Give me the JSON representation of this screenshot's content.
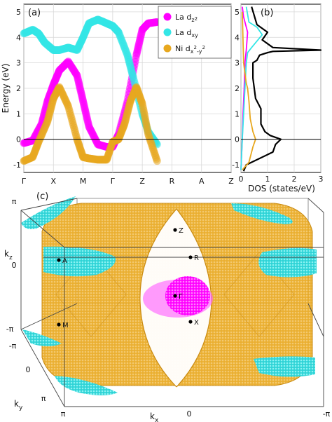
{
  "colors": {
    "la_dz2": "#ff00ff",
    "la_dxy": "#33e6e6",
    "ni_dx2y2": "#e8a81f",
    "total": "#000000"
  },
  "chart_data": [
    {
      "type": "line",
      "panel_label": "(a)",
      "ylabel": "Energy (eV)",
      "ylim": [
        -1.3,
        5.3
      ],
      "yticks": [
        "-1",
        "0",
        "1",
        "2",
        "3",
        "4",
        "5"
      ],
      "k_labels": [
        "Γ",
        "X",
        "M",
        "Γ",
        "Z",
        "R",
        "A",
        "Z"
      ],
      "grid": true,
      "legend": {
        "placement": "top-right",
        "entries": [
          "La dz2",
          "La dxy",
          "Ni dx2-y2"
        ],
        "display": [
          {
            "main": "La d",
            "sub": "z",
            "sup": "2"
          },
          {
            "main": "La d",
            "sub": "xy",
            "sup": ""
          },
          {
            "main": "Ni d",
            "sub": "x",
            "sup": "2",
            "sub2": "-y",
            "sup2": "2"
          }
        ]
      },
      "series": [
        {
          "name": "La dz2",
          "x": [
            0.0,
            0.3,
            0.6,
            0.8,
            1.0,
            1.2,
            1.5,
            1.8,
            2.0,
            2.2,
            2.5,
            2.8,
            3.0,
            3.2,
            3.5,
            3.8,
            4.0,
            4.2,
            4.5
          ],
          "y": [
            -0.15,
            -0.05,
            0.6,
            1.5,
            2.15,
            2.7,
            3.05,
            2.5,
            1.5,
            0.5,
            -0.2,
            -0.3,
            -0.3,
            0.2,
            1.5,
            3.3,
            4.3,
            4.55,
            4.6
          ]
        },
        {
          "name": "La dxy",
          "x": [
            0.0,
            0.3,
            0.5,
            0.7,
            1.0,
            1.2,
            1.5,
            1.8,
            2.0,
            2.2,
            2.5,
            2.8,
            3.0,
            3.2,
            3.5,
            3.7,
            4.0,
            4.2,
            4.5
          ],
          "y": [
            4.15,
            4.3,
            4.15,
            3.8,
            3.5,
            3.5,
            3.6,
            3.5,
            4.0,
            4.55,
            4.7,
            4.55,
            4.45,
            4.2,
            3.3,
            2.4,
            1.0,
            0.3,
            -0.2
          ]
        },
        {
          "name": "Ni dx2-y2",
          "x": [
            0.0,
            0.3,
            0.5,
            0.8,
            1.0,
            1.2,
            1.5,
            1.8,
            2.0,
            2.2,
            2.5,
            2.8,
            3.0,
            3.2,
            3.4,
            3.6,
            3.8,
            4.0,
            4.2,
            4.5
          ],
          "y": [
            -0.85,
            -0.7,
            -0.1,
            0.7,
            1.6,
            2.05,
            1.3,
            0.0,
            -0.7,
            -0.75,
            -0.8,
            -0.8,
            -0.1,
            0.0,
            0.6,
            1.5,
            2.05,
            1.4,
            0.2,
            -0.85
          ]
        }
      ]
    },
    {
      "type": "line",
      "panel_label": "(b)",
      "xlabel": "DOS (states/eV)",
      "xlim": [
        0,
        3
      ],
      "xticks": [
        "0",
        "1",
        "2",
        "3"
      ],
      "ylim": [
        -1.3,
        5.3
      ],
      "grid": true,
      "series": [
        {
          "name": "Total",
          "x": [
            0.1,
            0.2,
            1.2,
            1.3,
            1.5,
            1.1,
            0.9,
            0.75,
            0.75,
            0.55,
            0.5,
            0.45,
            0.45,
            0.6,
            0.7,
            1.0,
            1.2,
            3.0,
            1.2,
            0.8,
            1.0,
            0.6,
            0.4
          ],
          "y": [
            -1.25,
            -1.0,
            -0.5,
            -0.2,
            0.0,
            0.15,
            0.3,
            0.6,
            1.2,
            1.6,
            2.0,
            2.4,
            3.0,
            3.1,
            3.3,
            3.4,
            3.45,
            3.5,
            3.6,
            3.9,
            4.2,
            4.5,
            5.2
          ]
        },
        {
          "name": "La dz2",
          "x": [
            0.0,
            0.05,
            0.08,
            0.12,
            0.15,
            0.2,
            0.25,
            0.2,
            0.1,
            0.05
          ],
          "y": [
            -1.2,
            0.0,
            1.0,
            2.0,
            3.0,
            3.5,
            4.2,
            4.4,
            4.8,
            5.2
          ]
        },
        {
          "name": "La dxy",
          "x": [
            0.0,
            0.05,
            0.1,
            0.15,
            0.2,
            0.25,
            0.4,
            0.8,
            0.6,
            0.3,
            0.2
          ],
          "y": [
            -1.2,
            0.0,
            1.0,
            2.0,
            3.0,
            3.4,
            3.6,
            4.1,
            4.4,
            4.6,
            5.2
          ]
        },
        {
          "name": "Ni dx2-y2",
          "x": [
            0.05,
            0.3,
            0.45,
            0.55,
            0.45,
            0.35,
            0.3,
            0.25,
            0.2,
            0.1,
            0.05
          ],
          "y": [
            -1.2,
            -0.9,
            -0.3,
            0.0,
            0.3,
            0.8,
            1.5,
            2.0,
            2.2,
            3.0,
            5.0
          ]
        }
      ]
    },
    {
      "type": "scatter",
      "panel_label": "(c)",
      "xlabel": "k",
      "xlabel_sub": "x",
      "ylabel": "k",
      "ylabel_sub": "y",
      "zlabel": "k",
      "zlabel_sub": "z",
      "x_tick_labels": [
        "π",
        "0",
        "-π"
      ],
      "y_tick_labels": [
        "-π",
        "0",
        "π"
      ],
      "z_tick_labels": [
        "π",
        "0",
        "-π"
      ],
      "points": [
        {
          "label": "Z",
          "k": [
            0,
            0,
            3.14
          ]
        },
        {
          "label": "A",
          "k": [
            3.14,
            3.14,
            0
          ]
        },
        {
          "label": "R",
          "k": [
            0,
            3.14,
            0
          ]
        },
        {
          "label": "Γ",
          "k": [
            0,
            0,
            0
          ]
        },
        {
          "label": "M",
          "k": [
            3.14,
            3.14,
            -3.14
          ]
        },
        {
          "label": "X",
          "k": [
            0,
            3.14,
            -3.14
          ]
        }
      ],
      "surfaces": [
        "La dz2",
        "La dxy",
        "Ni dx2-y2"
      ]
    }
  ]
}
